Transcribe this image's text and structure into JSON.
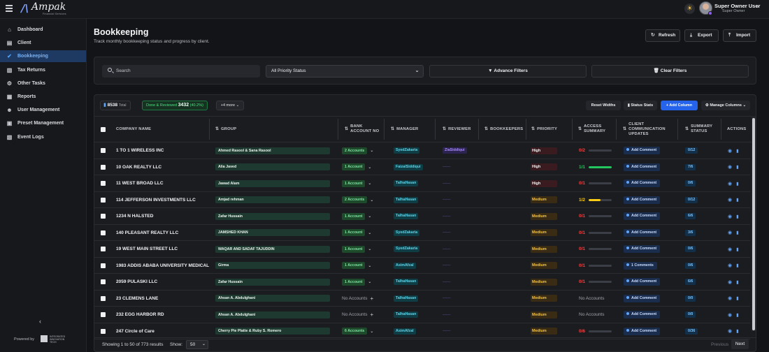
{
  "header": {
    "logo_text": "Ampak",
    "logo_sub": "Financial Services",
    "user_name": "Super Owner User",
    "user_role": "Super Owner"
  },
  "sidebar": {
    "items": [
      {
        "label": "Dashboard",
        "icon": "home-icon",
        "glyph": "⌂",
        "active": false
      },
      {
        "label": "Client",
        "icon": "client-icon",
        "glyph": "▤",
        "active": false
      },
      {
        "label": "Bookkeeping",
        "icon": "check-circle-icon",
        "glyph": "✔",
        "active": true
      },
      {
        "label": "Tax Returns",
        "icon": "chart-icon",
        "glyph": "▥",
        "active": false
      },
      {
        "label": "Other Tasks",
        "icon": "tasks-icon",
        "glyph": "⚙",
        "active": false
      },
      {
        "label": "Reports",
        "icon": "report-icon",
        "glyph": "▦",
        "active": false
      },
      {
        "label": "User Management",
        "icon": "users-icon",
        "glyph": "☻",
        "active": false
      },
      {
        "label": "Preset Management",
        "icon": "preset-icon",
        "glyph": "▣",
        "active": false
      },
      {
        "label": "Event Logs",
        "icon": "log-icon",
        "glyph": "▧",
        "active": false
      }
    ],
    "powered_by": "Powered by",
    "powered_company": "INTEGRATED INNOVATION TECH"
  },
  "page": {
    "title": "Bookkeeping",
    "subtitle": "Track monthly bookkeeping status and progress by client.",
    "refresh_label": "Refresh",
    "export_label": "Export",
    "import_label": "Import"
  },
  "filters": {
    "search_placeholder": "Search",
    "priority_value": "All Priority Status",
    "advance_label": "Advance Filters",
    "clear_label": "Clear Filters"
  },
  "stats": {
    "total_value": "8538",
    "total_label": "Total",
    "done_label": "Done & Reviewed",
    "done_value": "3432",
    "done_pct": "(40.2%)",
    "more_label": "+4 more"
  },
  "toolbar": {
    "reset_widths": "Reset Widths",
    "status_stats": "Status Stats",
    "add_column": "+ Add Column",
    "manage_columns": "Manage Columns"
  },
  "columns": {
    "company": "COMPANY NAME",
    "group": "GROUP",
    "bank": "BANK ACCOUNT NO",
    "manager": "MANAGER",
    "reviewer": "REVIEWER",
    "bookkeepers": "BOOKKEEPERS",
    "priority": "PRIORITY",
    "access": "ACCESS SUMMARY",
    "comm": "CLIENT COMMUNICATION UPDATES",
    "summary": "SUMMARY STATUS",
    "actions": "ACTIONS"
  },
  "colors": {
    "red": "#ef4444",
    "green": "#22c55e",
    "yellow": "#facc15"
  },
  "rows": [
    {
      "company": "1 TO 1 WIRELESS INC",
      "group": "Ahmed Rasool & Sana Rasool",
      "accounts": "2 Accounts",
      "manager": "SyedZakaria",
      "reviewer": "ZiaSiddiqui",
      "priority": "High",
      "access": "0/2",
      "access_color": "red",
      "access_frac": 0,
      "comm": "Add Comment",
      "summary": "0/12"
    },
    {
      "company": "10 OAK REALTY LLC",
      "group": "Alia Javed",
      "accounts": "1 Account",
      "manager": "FaizalSiddiqui",
      "reviewer": "",
      "priority": "High",
      "access": "1/1",
      "access_color": "green",
      "access_frac": 1,
      "comm": "Add Comment",
      "summary": "7/6"
    },
    {
      "company": "11 WEST BROAD LLC",
      "group": "Jawad Alam",
      "accounts": "1 Account",
      "manager": "TalhaHasan",
      "reviewer": "",
      "priority": "High",
      "access": "0/1",
      "access_color": "red",
      "access_frac": 0,
      "comm": "Add Comment",
      "summary": "0/6"
    },
    {
      "company": "114 JEFFERSON INVESTMENTS LLC",
      "group": "Amjad rehman",
      "accounts": "2 Accounts",
      "manager": "TalhaHasan",
      "reviewer": "",
      "priority": "Medium",
      "access": "1/2",
      "access_color": "yellow",
      "access_frac": 0.5,
      "comm": "Add Comment",
      "summary": "0/12"
    },
    {
      "company": "1234 N HALSTED",
      "group": "Zafar Hussain",
      "accounts": "1 Account",
      "manager": "TalhaHasan",
      "reviewer": "",
      "priority": "Medium",
      "access": "0/1",
      "access_color": "red",
      "access_frac": 0,
      "comm": "Add Comment",
      "summary": "6/6"
    },
    {
      "company": "140 PLEASANT REALTY LLC",
      "group": "JAMSHED KHAN",
      "accounts": "1 Account",
      "manager": "SyedZakaria",
      "reviewer": "",
      "priority": "Medium",
      "access": "0/1",
      "access_color": "red",
      "access_frac": 0,
      "comm": "Add Comment",
      "summary": "3/6"
    },
    {
      "company": "19 WEST MAIN STREET LLC",
      "group": "WAQAR AND SADAF TAJUDDIN",
      "accounts": "1 Account",
      "manager": "SyedZakaria",
      "reviewer": "",
      "priority": "Medium",
      "access": "0/1",
      "access_color": "red",
      "access_frac": 0,
      "comm": "Add Comment",
      "summary": "0/6"
    },
    {
      "company": "1983 ADDIS ABABA UNIVERSITY MEDICAL",
      "group": "Girma",
      "accounts": "1 Account",
      "manager": "AsimAfzal",
      "reviewer": "",
      "priority": "Medium",
      "access": "0/1",
      "access_color": "red",
      "access_frac": 0,
      "comm": "1 Comments",
      "summary": "0/6"
    },
    {
      "company": "2059 PULASKI LLC",
      "group": "Zafar Hussain",
      "accounts": "1 Account",
      "manager": "TalhaHasan",
      "reviewer": "",
      "priority": "Medium",
      "access": "0/1",
      "access_color": "red",
      "access_frac": 0,
      "comm": "Add Comment",
      "summary": "6/6"
    },
    {
      "company": "23 CLEMENS LANE",
      "group": "Ahsan A. Abdulghani",
      "accounts": "",
      "manager": "TalhaHasan",
      "reviewer": "",
      "priority": "Medium",
      "access": "",
      "access_color": "",
      "access_frac": 0,
      "comm": "Add Comment",
      "summary": "0/0"
    },
    {
      "company": "232 EGG HARBOR RD",
      "group": "Ahsan A. Abdulghani",
      "accounts": "",
      "manager": "TalhaHasan",
      "reviewer": "",
      "priority": "Medium",
      "access": "",
      "access_color": "",
      "access_frac": 0,
      "comm": "Add Comment",
      "summary": "0/0"
    },
    {
      "company": "247 Circle of Care",
      "group": "Cherry Pie Platte & Ruby S. Romero",
      "accounts": "6 Accounts",
      "manager": "AsimAfzal",
      "reviewer": "",
      "priority": "Medium",
      "access": "0/6",
      "access_color": "red",
      "access_frac": 0,
      "comm": "Add Comment",
      "summary": "0/36"
    }
  ],
  "no_accounts_label": "No Accounts",
  "no_access_label": "No Accounts",
  "footer": {
    "showing": "Showing 1 to 50 of 773 results",
    "show_label": "Show:",
    "page_size": "50",
    "prev": "Previous",
    "next": "Next"
  }
}
